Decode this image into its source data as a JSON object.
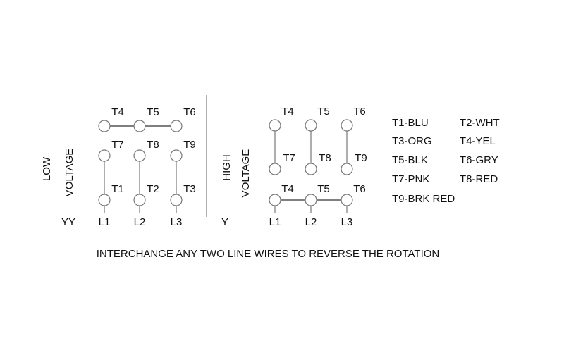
{
  "low": {
    "label1": "LOW",
    "label2": "VOLTAGE",
    "connection": "YY",
    "top_row": [
      "T4",
      "T5",
      "T6"
    ],
    "mid_row": [
      "T7",
      "T8",
      "T9"
    ],
    "bottom_row": [
      "T1",
      "T2",
      "T3"
    ],
    "lines": [
      "L1",
      "L2",
      "L3"
    ]
  },
  "high": {
    "label1": "HIGH",
    "label2": "VOLTAGE",
    "connection": "Y",
    "top_row": [
      "T4",
      "T5",
      "T6"
    ],
    "mid_row": [
      "T7",
      "T8",
      "T9"
    ],
    "bottom_row": [
      "T4",
      "T5",
      "T6"
    ],
    "lines": [
      "L1",
      "L2",
      "L3"
    ]
  },
  "legend": [
    [
      "T1-BLU",
      "T2-WHT"
    ],
    [
      "T3-ORG",
      "T4-YEL"
    ],
    [
      "T5-BLK",
      "T6-GRY"
    ],
    [
      "T7-PNK",
      "T8-RED"
    ],
    [
      "T9-BRK RED"
    ]
  ],
  "note": "INTERCHANGE ANY TWO LINE WIRES TO REVERSE THE ROTATION"
}
